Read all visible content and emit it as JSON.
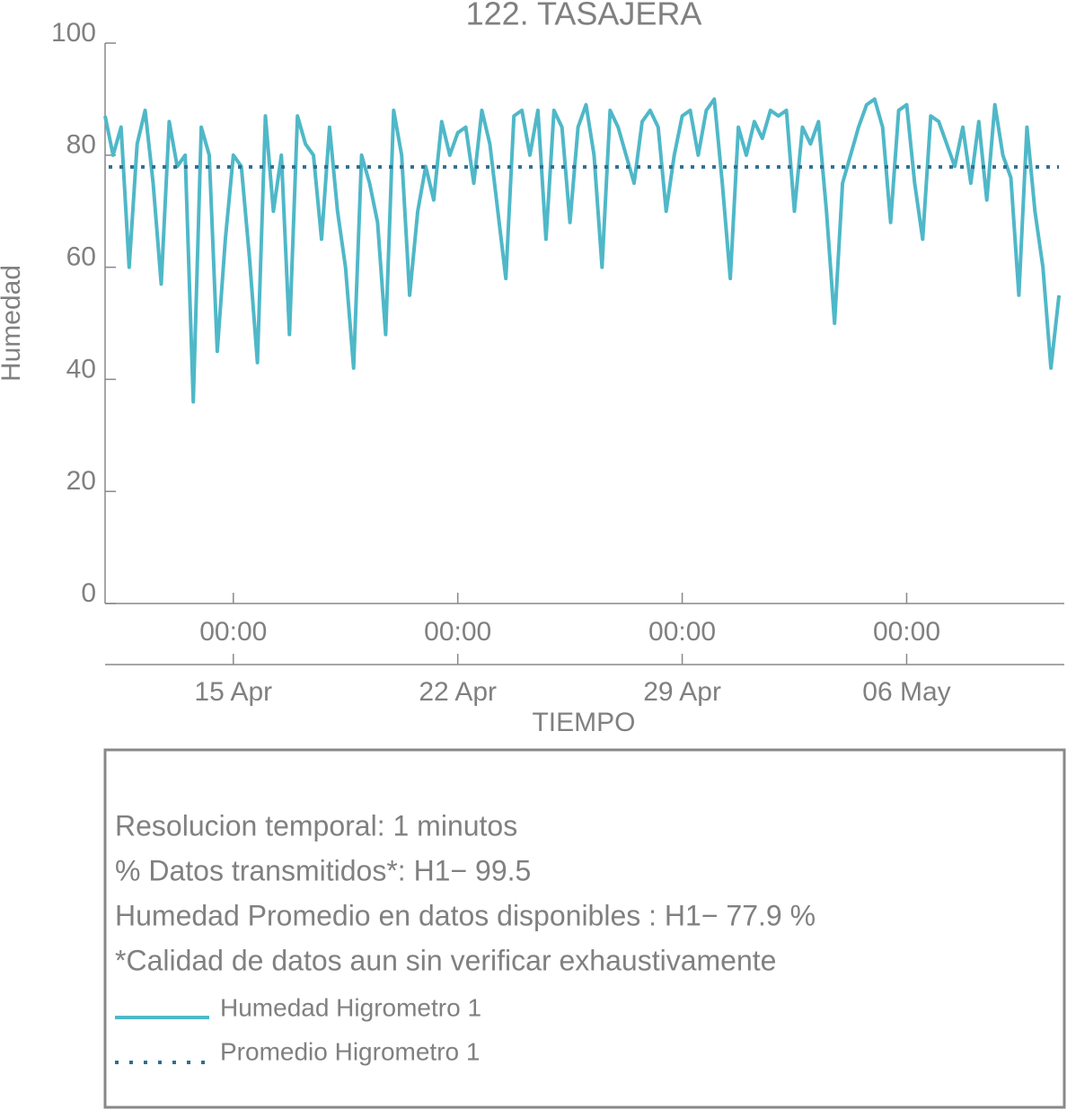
{
  "chart_data": {
    "type": "line",
    "title": "122. TASAJERA",
    "y_label": "Humedad",
    "x_label": "TIEMPO",
    "x": [
      "04-11 00:00",
      "04-11 06:00",
      "04-11 12:00",
      "04-11 18:00",
      "04-12 00:00",
      "04-12 06:00",
      "04-12 12:00",
      "04-12 18:00",
      "04-13 00:00",
      "04-13 06:00",
      "04-13 12:00",
      "04-13 18:00",
      "04-14 00:00",
      "04-14 06:00",
      "04-14 12:00",
      "04-14 18:00",
      "04-15 00:00",
      "04-15 06:00",
      "04-15 12:00",
      "04-15 18:00",
      "04-16 00:00",
      "04-16 06:00",
      "04-16 12:00",
      "04-16 18:00",
      "04-17 00:00",
      "04-17 06:00",
      "04-17 12:00",
      "04-17 18:00",
      "04-18 00:00",
      "04-18 06:00",
      "04-18 12:00",
      "04-18 18:00",
      "04-19 00:00",
      "04-19 06:00",
      "04-19 12:00",
      "04-19 18:00",
      "04-20 00:00",
      "04-20 06:00",
      "04-20 12:00",
      "04-20 18:00",
      "04-21 00:00",
      "04-21 06:00",
      "04-21 12:00",
      "04-21 18:00",
      "04-22 00:00",
      "04-22 06:00",
      "04-22 12:00",
      "04-22 18:00",
      "04-23 00:00",
      "04-23 06:00",
      "04-23 12:00",
      "04-23 18:00",
      "04-24 00:00",
      "04-24 06:00",
      "04-24 12:00",
      "04-24 18:00",
      "04-25 00:00",
      "04-25 06:00",
      "04-25 12:00",
      "04-25 18:00",
      "04-26 00:00",
      "04-26 06:00",
      "04-26 12:00",
      "04-26 18:00",
      "04-27 00:00",
      "04-27 06:00",
      "04-27 12:00",
      "04-27 18:00",
      "04-28 00:00",
      "04-28 06:00",
      "04-28 12:00",
      "04-28 18:00",
      "04-29 00:00",
      "04-29 06:00",
      "04-29 12:00",
      "04-29 18:00",
      "04-30 00:00",
      "04-30 06:00",
      "04-30 12:00",
      "04-30 18:00",
      "05-01 00:00",
      "05-01 06:00",
      "05-01 12:00",
      "05-01 18:00",
      "05-02 00:00",
      "05-02 06:00",
      "05-02 12:00",
      "05-02 18:00",
      "05-03 00:00",
      "05-03 06:00",
      "05-03 12:00",
      "05-03 18:00",
      "05-04 00:00",
      "05-04 06:00",
      "05-04 12:00",
      "05-04 18:00",
      "05-05 00:00",
      "05-05 06:00",
      "05-05 12:00",
      "05-05 18:00",
      "05-06 00:00",
      "05-06 06:00",
      "05-06 12:00",
      "05-06 18:00",
      "05-07 00:00",
      "05-07 06:00",
      "05-07 12:00",
      "05-07 18:00",
      "05-08 00:00",
      "05-08 06:00",
      "05-08 12:00",
      "05-08 18:00",
      "05-09 00:00",
      "05-09 06:00",
      "05-09 12:00",
      "05-09 18:00",
      "05-10 00:00",
      "05-10 06:00",
      "05-10 12:00",
      "05-10 18:00"
    ],
    "series": [
      {
        "name": "Humedad Higrometro 1",
        "color": "#4fb8c8",
        "values": [
          87,
          80,
          85,
          60,
          82,
          88,
          75,
          57,
          86,
          78,
          80,
          36,
          85,
          80,
          45,
          65,
          80,
          78,
          62,
          43,
          87,
          70,
          80,
          48,
          87,
          82,
          80,
          65,
          85,
          70,
          60,
          42,
          80,
          75,
          68,
          48,
          88,
          80,
          55,
          70,
          78,
          72,
          86,
          80,
          84,
          85,
          75,
          88,
          82,
          70,
          58,
          87,
          88,
          80,
          88,
          65,
          88,
          85,
          68,
          85,
          89,
          80,
          60,
          88,
          85,
          80,
          75,
          86,
          88,
          85,
          70,
          80,
          87,
          88,
          80,
          88,
          90,
          75,
          58,
          85,
          80,
          86,
          83,
          88,
          87,
          88,
          70,
          85,
          82,
          86,
          70,
          50,
          75,
          80,
          85,
          89,
          90,
          85,
          68,
          88,
          89,
          75,
          65,
          87,
          86,
          82,
          78,
          85,
          75,
          86,
          72,
          89,
          80,
          76,
          55,
          85,
          70,
          60,
          42,
          55
        ]
      },
      {
        "name": "Promedio Higrometro 1",
        "color": "#2f6f8f",
        "value": 77.9
      }
    ],
    "xlim": [
      "04-11 00:00",
      "05-10 22:00"
    ],
    "xticks": [
      {
        "value": "04-15 00:00",
        "label": "00:00"
      },
      {
        "value": "04-22 00:00",
        "label": "00:00"
      },
      {
        "value": "04-29 00:00",
        "label": "00:00"
      },
      {
        "value": "05-06 00:00",
        "label": "00:00"
      }
    ],
    "xticks_dates": [
      {
        "value": "04-15 00:00",
        "label": "15 Apr"
      },
      {
        "value": "04-22 00:00",
        "label": "22 Apr"
      },
      {
        "value": "04-29 00:00",
        "label": "29 Apr"
      },
      {
        "value": "05-06 00:00",
        "label": "06 May"
      }
    ],
    "ylim": [
      0,
      100
    ],
    "yticks": [
      0,
      20,
      40,
      60,
      80,
      100
    ],
    "notes": [
      "Resolucion temporal: 1 minutos",
      "% Datos transmitidos*: H1− 99.5",
      "Humedad Promedio en datos disponibles : H1− 77.9 %",
      "*Calidad de datos aun sin verificar exhaustivamente"
    ]
  }
}
